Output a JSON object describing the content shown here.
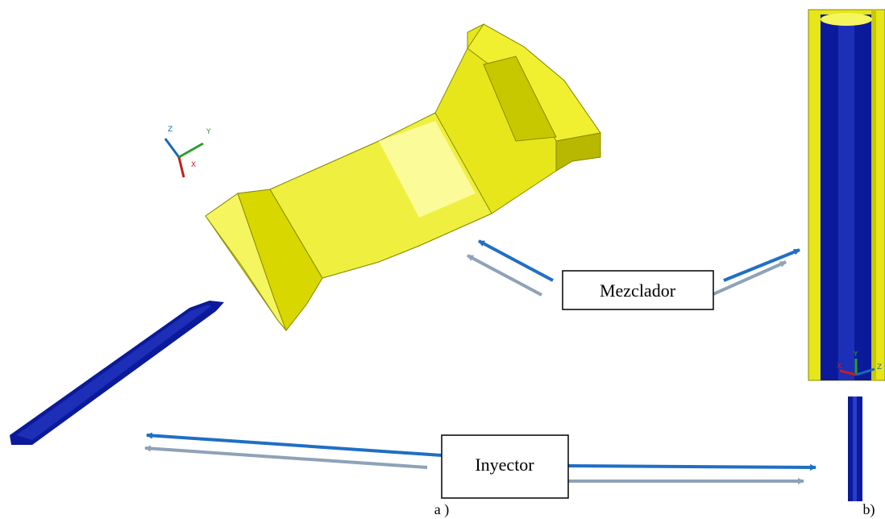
{
  "labels": {
    "mixer": "Mezclador",
    "injector": "Inyector",
    "panel_a": "a )",
    "panel_b": "b)"
  },
  "axes_left": {
    "z": "Z",
    "y": "Y",
    "x": "X"
  },
  "axes_right": {
    "z": "Z",
    "y": "Y",
    "x": "X"
  }
}
